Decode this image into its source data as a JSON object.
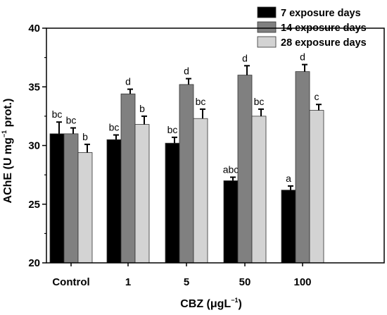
{
  "chart_data": {
    "type": "bar",
    "categories": [
      "Control",
      "1",
      "5",
      "50",
      "100"
    ],
    "series": [
      {
        "name": "7 exposure days",
        "color": "#000000",
        "values": [
          31.0,
          30.5,
          30.2,
          27.0,
          26.2
        ],
        "errors": [
          1.0,
          0.4,
          0.5,
          0.3,
          0.35
        ],
        "labels": [
          "bc",
          "bc",
          "bc",
          "abc",
          "a"
        ]
      },
      {
        "name": "14 exposure days",
        "color": "#808080",
        "values": [
          31.0,
          34.4,
          35.2,
          36.0,
          36.3
        ],
        "errors": [
          0.5,
          0.4,
          0.5,
          0.8,
          0.6
        ],
        "labels": [
          "bc",
          "d",
          "d",
          "d",
          "d"
        ]
      },
      {
        "name": "28 exposure days",
        "color": "#d3d3d3",
        "values": [
          29.4,
          31.8,
          32.3,
          32.5,
          33.0
        ],
        "errors": [
          0.7,
          0.7,
          0.8,
          0.6,
          0.5
        ],
        "labels": [
          "b",
          "b",
          "bc",
          "bc",
          "c"
        ]
      }
    ],
    "ylim": [
      20,
      40
    ],
    "yticks": [
      "20",
      "25",
      "30",
      "35",
      "40"
    ],
    "ylabel": {
      "pre": "AChE (U mg",
      "sup": "−1",
      "post": " prot.)"
    },
    "xlabel": {
      "pre": "CBZ (μgL",
      "sup": "−1",
      "post": ")"
    },
    "legend_position": "top-right",
    "grid": false
  }
}
